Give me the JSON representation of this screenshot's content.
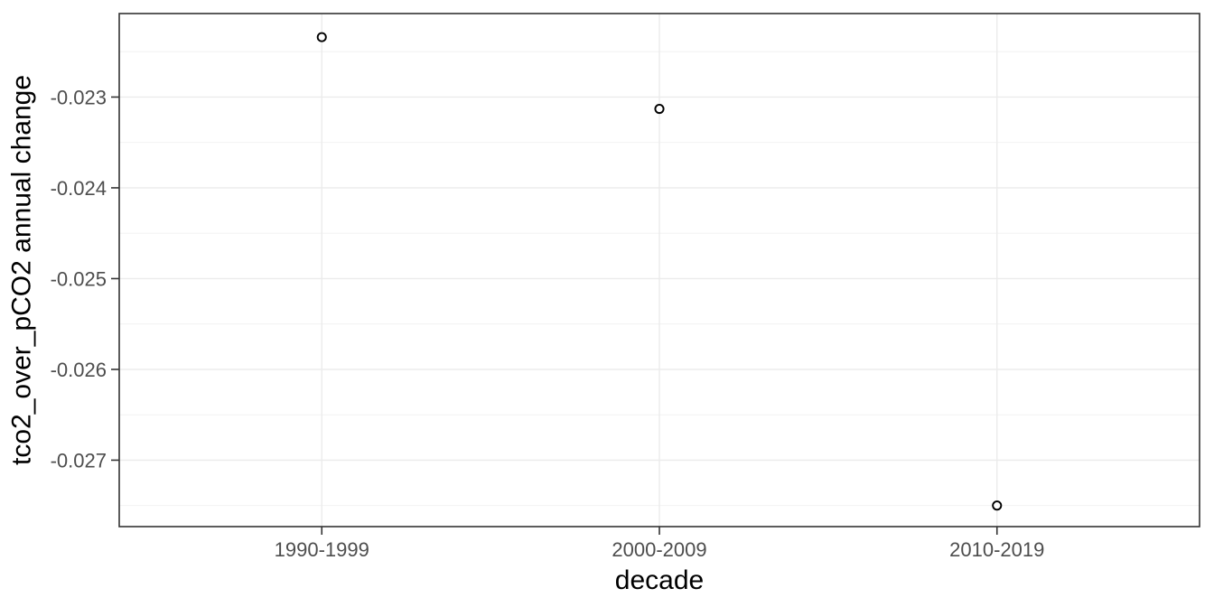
{
  "chart_data": {
    "type": "scatter",
    "title": "",
    "xlabel": "decade",
    "ylabel": "tco2_over_pCO2 annual change",
    "categories": [
      "1990-1999",
      "2000-2009",
      "2010-2019"
    ],
    "values": [
      -0.02234,
      -0.02313,
      -0.0275
    ],
    "series": [
      {
        "name": "tco2_over_pCO2 annual change by decade",
        "points": [
          {
            "x": "1990-1999",
            "y": -0.02234
          },
          {
            "x": "2000-2009",
            "y": -0.02313
          },
          {
            "x": "2010-2019",
            "y": -0.0275
          }
        ]
      }
    ],
    "y_ticks": [
      {
        "value": -0.023,
        "label": "-0.023"
      },
      {
        "value": -0.024,
        "label": "-0.024"
      },
      {
        "value": -0.025,
        "label": "-0.025"
      },
      {
        "value": -0.026,
        "label": "-0.026"
      },
      {
        "value": -0.027,
        "label": "-0.027"
      }
    ],
    "y_minor_ticks": [
      -0.0225,
      -0.0235,
      -0.0245,
      -0.0255,
      -0.0265,
      -0.0275
    ],
    "ylim": [
      -0.027732,
      -0.02208
    ],
    "x_axis_type": "categorical",
    "grid": "horizontal major+minor, vertical major only",
    "legend_position": "none",
    "point_shape": "open-circle",
    "theme": "ggplot theme_bw white panel with light gray grid"
  },
  "colors": {
    "background": "#ffffff",
    "panel_background": "#ffffff",
    "panel_border": "#333333",
    "grid_major": "#ebebeb",
    "grid_minor": "#f0f0f0",
    "tick_mark": "#333333",
    "tick_label": "#4d4d4d",
    "axis_title": "#000000",
    "point_stroke": "#000000",
    "point_fill": "#ffffff"
  }
}
